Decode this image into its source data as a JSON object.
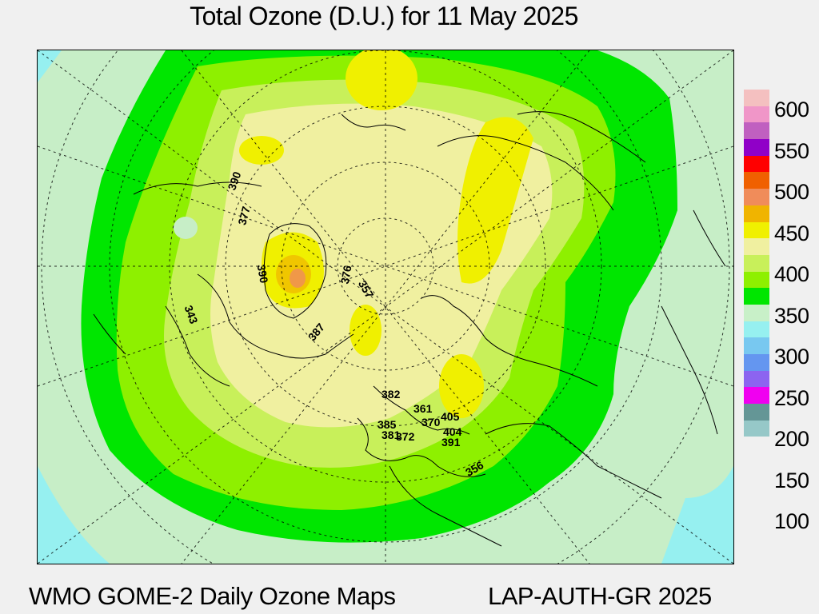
{
  "title": "Total Ozone (D.U.) for 11 May 2025",
  "footer": {
    "left": "WMO GOME-2 Daily Ozone Maps",
    "right": "LAP-AUTH-GR 2025"
  },
  "legend": {
    "colors": [
      "#f4c0c0",
      "#f096c8",
      "#c060c0",
      "#9000c8",
      "#ff0000",
      "#f06000",
      "#f08c5a",
      "#f0b400",
      "#f0f000",
      "#f0f0a0",
      "#c8f05a",
      "#8ef000",
      "#00e600",
      "#c8f0c8",
      "#96f0f0",
      "#78c8f0",
      "#6496f0",
      "#8c64f0",
      "#f000f0",
      "#649696",
      "#96c8c8"
    ],
    "labels": [
      "600",
      "550",
      "500",
      "450",
      "400",
      "350",
      "300",
      "250",
      "200",
      "150",
      "100"
    ]
  },
  "stations": [
    {
      "label": "390"
    },
    {
      "label": "377"
    },
    {
      "label": "390"
    },
    {
      "label": "343"
    },
    {
      "label": "376"
    },
    {
      "label": "357"
    },
    {
      "label": "387"
    },
    {
      "label": "382"
    },
    {
      "label": "361"
    },
    {
      "label": "370"
    },
    {
      "label": "405"
    },
    {
      "label": "385"
    },
    {
      "label": "381"
    },
    {
      "label": "372"
    },
    {
      "label": "404"
    },
    {
      "label": "391"
    },
    {
      "label": "356"
    }
  ]
}
